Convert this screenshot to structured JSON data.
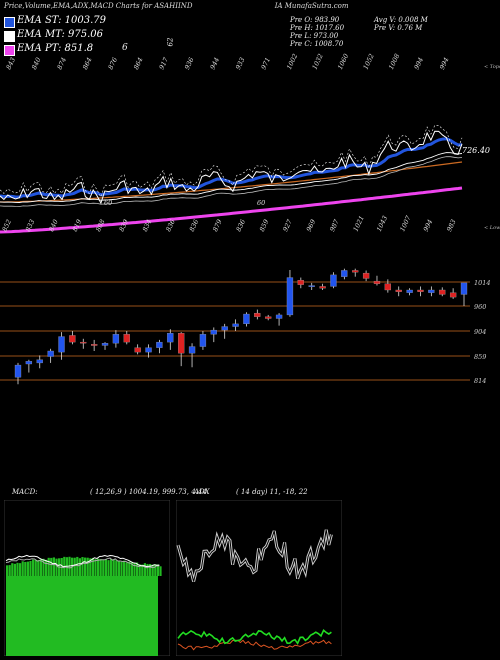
{
  "header": {
    "title": "Price,Volume,EMA,ADX,MACD Charts for ASAHIIND",
    "title_site": "IA MunafaSutra.com",
    "ema_st_label": "EMA ST: 1003.79",
    "ema_mt_label": "EMA MT: 975.06",
    "ema_lt_label": "EMA PT: 851.8",
    "ema_st_color": "#2255dd",
    "ema_mt_color": "#ffffff",
    "ema_lt_color": "#ee44ee",
    "stray_6": "6",
    "stray_62": "62"
  },
  "info": {
    "prev_open": "Pre   O: 983.90",
    "prev_high": "Pre   H: 1017.60",
    "prev_low": "Pre   L: 973.00",
    "prev_close": "Pre   C: 1008.70",
    "avg_volume": "Avg V: 0.008  M",
    "prev_volume": "Pre   V: 0.76  M"
  },
  "chart_data": [
    {
      "type": "line",
      "name": "price-ema-panel",
      "current_value_label": "726.40",
      "corner_label_top": "< Topo",
      "corner_label_bottom": "< Lowes",
      "top_labels": [
        "843",
        "840",
        "874",
        "864",
        "876",
        "864",
        "917",
        "936",
        "944",
        "933",
        "971",
        "1002",
        "1032",
        "1060",
        "1052",
        "1008",
        "994",
        "994"
      ],
      "bottom_labels": [
        "852",
        "833",
        "840",
        "819",
        "808",
        "839",
        "834",
        "836",
        "836",
        "879",
        "836",
        "859",
        "927",
        "969",
        "987",
        "1021",
        "1043",
        "1007",
        "994",
        "983"
      ],
      "stray_labels": [
        "60",
        "60"
      ],
      "colors": {
        "price": "#ffffff",
        "ema_short": "#2255dd",
        "ema_mid": "#ffffff",
        "ema_long": "#cc6a22",
        "ema_pt": "#ee44ee"
      }
    },
    {
      "type": "bar",
      "name": "candlestick-panel",
      "subtype": "candlestick",
      "price_levels": [
        "1014",
        "960",
        "904",
        "859",
        "814"
      ],
      "colors": {
        "up": "#2255ee",
        "down": "#dd2222",
        "levels": "#cc6a22"
      },
      "candles_ohlc": [
        [
          819,
          846,
          806,
          842
        ],
        [
          844,
          852,
          828,
          849
        ],
        [
          846,
          860,
          836,
          852
        ],
        [
          858,
          872,
          846,
          868
        ],
        [
          866,
          902,
          852,
          894
        ],
        [
          896,
          904,
          880,
          884
        ],
        [
          884,
          890,
          872,
          882
        ],
        [
          880,
          888,
          868,
          878
        ],
        [
          878,
          884,
          870,
          882
        ],
        [
          882,
          906,
          874,
          898
        ],
        [
          898,
          904,
          880,
          884
        ],
        [
          874,
          880,
          862,
          866
        ],
        [
          866,
          880,
          856,
          874
        ],
        [
          874,
          888,
          864,
          884
        ],
        [
          884,
          908,
          870,
          900
        ],
        [
          900,
          902,
          840,
          864
        ],
        [
          864,
          882,
          838,
          876
        ],
        [
          876,
          904,
          870,
          898
        ],
        [
          898,
          912,
          884,
          906
        ],
        [
          906,
          920,
          890,
          914
        ],
        [
          914,
          930,
          904,
          920
        ],
        [
          920,
          946,
          914,
          942
        ],
        [
          944,
          952,
          930,
          936
        ],
        [
          936,
          940,
          928,
          932
        ],
        [
          932,
          944,
          916,
          940
        ],
        [
          940,
          1041,
          936,
          1024
        ],
        [
          1018,
          1024,
          1000,
          1008
        ],
        [
          1004,
          1012,
          996,
          1006
        ],
        [
          1004,
          1010,
          996,
          1000
        ],
        [
          1004,
          1036,
          1000,
          1030
        ],
        [
          1026,
          1044,
          1020,
          1040
        ],
        [
          1040,
          1044,
          1026,
          1036
        ],
        [
          1034,
          1040,
          1016,
          1022
        ],
        [
          1016,
          1028,
          1006,
          1010
        ],
        [
          1010,
          1020,
          990,
          996
        ],
        [
          996,
          1004,
          982,
          992
        ],
        [
          990,
          1000,
          984,
          996
        ],
        [
          996,
          1004,
          982,
          992
        ],
        [
          990,
          1004,
          982,
          996
        ],
        [
          996,
          1002,
          982,
          986
        ],
        [
          990,
          1000,
          976,
          980
        ],
        [
          986,
          1000,
          960,
          1012
        ]
      ]
    },
    {
      "type": "line",
      "name": "macd-panel",
      "title": "MACD:",
      "params": "( 12,26,9 ) 1004.19, 999.73, 4.44",
      "colors": {
        "bars": "#22bb22",
        "macd": "#ffffff",
        "signal": "#aaaaaa"
      }
    },
    {
      "type": "line",
      "name": "adx-panel",
      "title": "ADX",
      "params": "( 14  day) 11, -18, 22",
      "colors": {
        "adx": "#ffffff",
        "plus_di": "#22dd22",
        "minus_di": "#dd5522"
      }
    }
  ]
}
